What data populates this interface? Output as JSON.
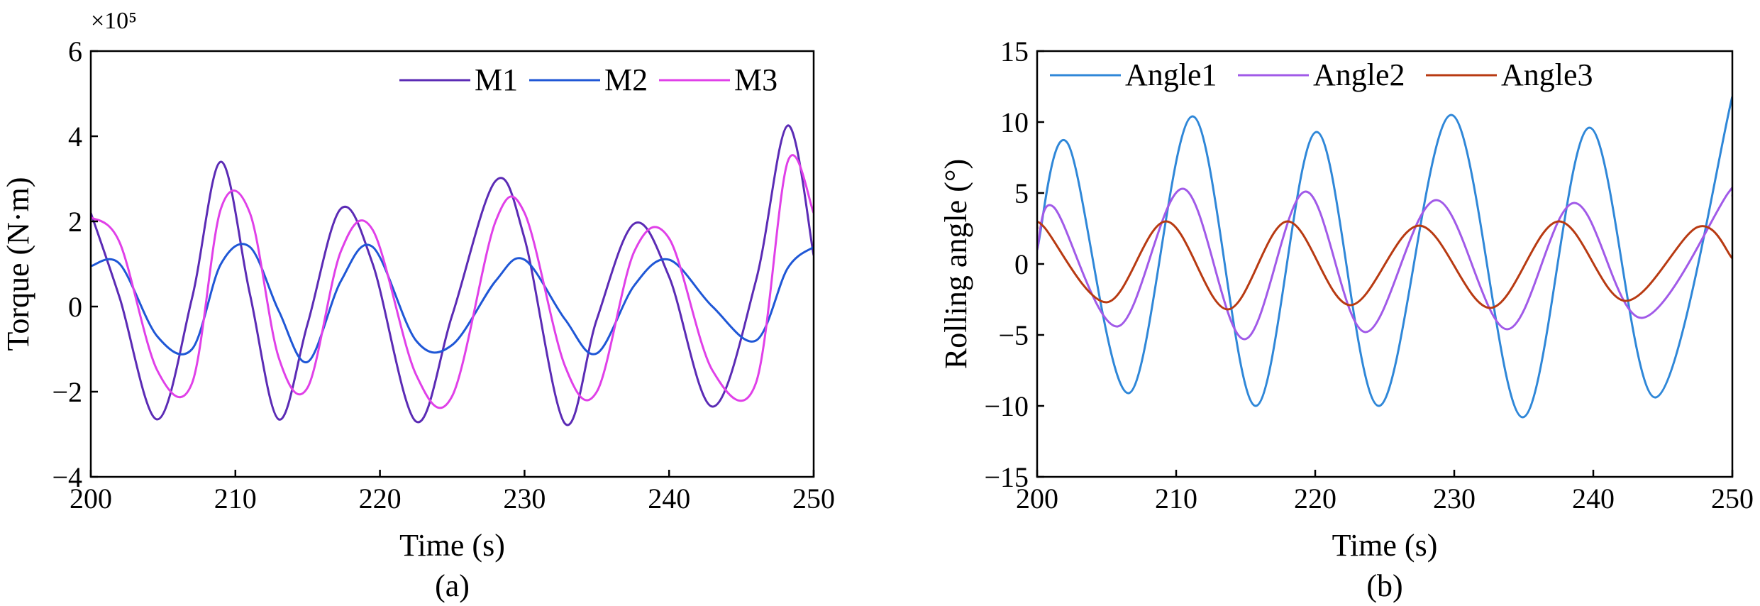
{
  "chart_data": [
    {
      "type": "line",
      "caption": "(a)",
      "xlabel": "Time (s)",
      "ylabel": "Torque (N·m)",
      "multiplier": "×10⁵",
      "xlim": [
        200,
        250
      ],
      "ylim": [
        -4,
        6
      ],
      "xticks": [
        200,
        210,
        220,
        230,
        240,
        250
      ],
      "xtick_labels": [
        "200",
        "210",
        "220",
        "230",
        "240",
        "250"
      ],
      "yticks": [
        -4,
        -2,
        0,
        2,
        4,
        6
      ],
      "ytick_labels": [
        "−4",
        "−2",
        "0",
        "2",
        "4",
        "6"
      ],
      "grid": false,
      "legend": "top-right",
      "x": [
        200,
        202,
        204.6,
        207,
        209,
        211,
        213,
        215,
        217.3,
        219.5,
        222.5,
        225,
        228,
        230,
        232.8,
        235,
        237.6,
        240,
        243,
        246,
        248.2,
        250
      ],
      "series": [
        {
          "name": "M1",
          "color": "#5b2bb5",
          "values": [
            2.2,
            0.2,
            -2.65,
            0.2,
            3.4,
            0.3,
            -2.65,
            -0.4,
            2.3,
            1.0,
            -2.7,
            -0.2,
            2.95,
            1.6,
            -2.75,
            -0.3,
            1.95,
            0.7,
            -2.35,
            0.6,
            4.25,
            1.2
          ]
        },
        {
          "name": "M2",
          "color": "#1f57d6",
          "values": [
            0.95,
            1.0,
            -0.7,
            -1.0,
            1.0,
            1.4,
            -0.1,
            -1.3,
            0.6,
            1.4,
            -0.8,
            -0.9,
            0.6,
            1.1,
            -0.3,
            -1.1,
            0.5,
            1.1,
            0.0,
            -0.8,
            0.9,
            1.4
          ]
        },
        {
          "name": "M3",
          "color": "#e040e8",
          "values": [
            2.1,
            1.5,
            -1.5,
            -1.8,
            2.3,
            2.2,
            -1.2,
            -1.9,
            1.3,
            1.8,
            -1.6,
            -2.1,
            2.0,
            2.2,
            -1.4,
            -2.0,
            1.3,
            1.6,
            -1.5,
            -1.8,
            3.4,
            2.2
          ]
        }
      ]
    },
    {
      "type": "line",
      "caption": "(b)",
      "xlabel": "Time (s)",
      "ylabel": "Rolling angle (°)",
      "xlim": [
        200,
        250
      ],
      "ylim": [
        -15,
        15
      ],
      "xticks": [
        200,
        210,
        220,
        230,
        240,
        250
      ],
      "xtick_labels": [
        "200",
        "210",
        "220",
        "230",
        "240",
        "250"
      ],
      "yticks": [
        -15,
        -10,
        -5,
        0,
        5,
        10,
        15
      ],
      "ytick_labels": [
        "−15",
        "−10",
        "−5",
        "0",
        "5",
        "10",
        "15"
      ],
      "grid": false,
      "legend": "top",
      "series": [
        {
          "name": "Angle1",
          "color": "#2f87d8",
          "x": [
            200,
            202.2,
            206.6,
            211.2,
            215.7,
            220.1,
            224.6,
            229.8,
            234.9,
            239.7,
            244.5,
            250
          ],
          "values": [
            1.0,
            8.5,
            -9.1,
            10.4,
            -10.0,
            9.3,
            -10.0,
            10.5,
            -10.8,
            9.6,
            -9.4,
            11.8
          ]
        },
        {
          "name": "Angle2",
          "color": "#a15ae8",
          "x": [
            200,
            201.2,
            205.8,
            210.5,
            214.9,
            219.3,
            223.6,
            228.7,
            233.8,
            238.6,
            243.5,
            249.7,
            250
          ],
          "values": [
            1.0,
            4.0,
            -4.4,
            5.3,
            -5.3,
            5.1,
            -4.8,
            4.5,
            -4.6,
            4.3,
            -3.8,
            5.0,
            4.8
          ]
        },
        {
          "name": "Angle3",
          "color": "#b83a12",
          "x": [
            200,
            200.5,
            205,
            209.3,
            213.7,
            218,
            222.5,
            227.5,
            232.6,
            237.5,
            242.3,
            247.5,
            250
          ],
          "values": [
            2.5,
            2.6,
            -2.7,
            3.0,
            -3.2,
            3.0,
            -2.9,
            2.7,
            -3.1,
            3.0,
            -2.6,
            2.6,
            0.4
          ]
        }
      ]
    }
  ]
}
